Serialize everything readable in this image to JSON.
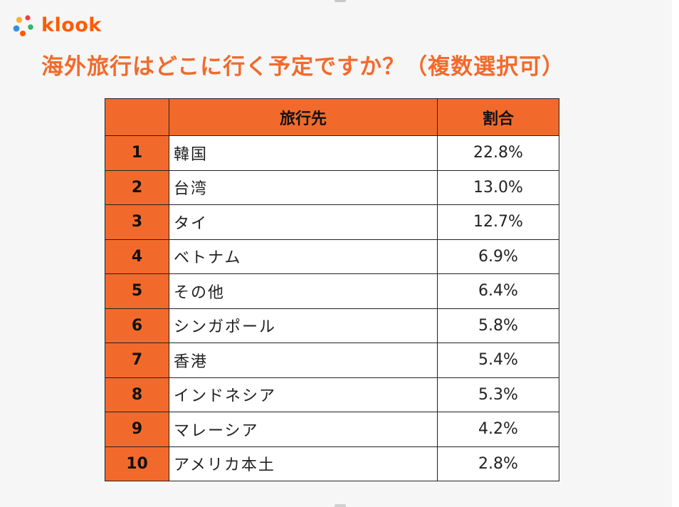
{
  "brand": {
    "name": "klook",
    "colors": [
      "#f9b233",
      "#3b8fd9",
      "#e8443a",
      "#2fb36b",
      "#ff5b00"
    ]
  },
  "title": "海外旅行はどこに行く予定ですか？（複数選択可）",
  "table": {
    "headers": {
      "rank": "",
      "destination": "旅行先",
      "share": "割合"
    },
    "rows": [
      {
        "rank": "1",
        "destination": "韓国",
        "share": "22.8%"
      },
      {
        "rank": "2",
        "destination": "台湾",
        "share": "13.0%"
      },
      {
        "rank": "3",
        "destination": "タイ",
        "share": "12.7%"
      },
      {
        "rank": "4",
        "destination": "ベトナム",
        "share": "6.9%"
      },
      {
        "rank": "5",
        "destination": "その他",
        "share": "6.4%"
      },
      {
        "rank": "6",
        "destination": "シンガポール",
        "share": "5.8%"
      },
      {
        "rank": "7",
        "destination": "香港",
        "share": "5.4%"
      },
      {
        "rank": "8",
        "destination": "インドネシア",
        "share": "5.3%"
      },
      {
        "rank": "9",
        "destination": "マレーシア",
        "share": "4.2%"
      },
      {
        "rank": "10",
        "destination": "アメリカ本土",
        "share": "2.8%"
      }
    ],
    "colors": {
      "header_bg": "#f26a2b",
      "rank_bg": "#f26a2b",
      "cell_bg": "#ffffff",
      "border": "#222222"
    }
  }
}
